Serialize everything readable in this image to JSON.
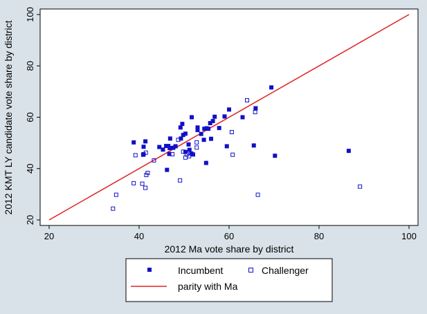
{
  "chart_data": {
    "type": "scatter",
    "xlabel": "2012 Ma vote share by district",
    "ylabel": "2012 KMT LY candidate vote share by district",
    "xlim": [
      20,
      100
    ],
    "ylim": [
      20,
      100
    ],
    "xticks": [
      20,
      40,
      60,
      80,
      100
    ],
    "yticks": [
      20,
      40,
      60,
      80,
      100
    ],
    "grid": false,
    "legend_position": "bottom",
    "legend": {
      "incumbent": "Incumbent",
      "challenger": "Challenger",
      "parity": "parity with Ma"
    },
    "colors": {
      "marker": "#1010c8",
      "line": "#e02020",
      "background": "#d9e2e8",
      "plot_area": "#ffffff"
    },
    "series": [
      {
        "name": "Incumbent",
        "marker": "filled-square",
        "points": [
          [
            38.8,
            50.2
          ],
          [
            41.0,
            48.5
          ],
          [
            41.4,
            50.6
          ],
          [
            41.0,
            45.6
          ],
          [
            44.5,
            48.4
          ],
          [
            45.3,
            47.4
          ],
          [
            46.0,
            48.8
          ],
          [
            46.5,
            48.8
          ],
          [
            46.8,
            48.0
          ],
          [
            46.9,
            51.7
          ],
          [
            46.7,
            45.7
          ],
          [
            46.2,
            39.5
          ],
          [
            47.6,
            48.1
          ],
          [
            48.1,
            48.7
          ],
          [
            49.3,
            51.7
          ],
          [
            49.2,
            56.0
          ],
          [
            49.6,
            57.4
          ],
          [
            49.8,
            53.1
          ],
          [
            50.3,
            53.6
          ],
          [
            50.3,
            46.5
          ],
          [
            51.0,
            49.4
          ],
          [
            51.2,
            47.3
          ],
          [
            51.6,
            45.9
          ],
          [
            51.7,
            60.0
          ],
          [
            52.0,
            45.5
          ],
          [
            53.0,
            55.0
          ],
          [
            53.0,
            56.0
          ],
          [
            53.8,
            53.5
          ],
          [
            54.5,
            55.5
          ],
          [
            54.4,
            51.2
          ],
          [
            55.0,
            55.7
          ],
          [
            54.9,
            42.2
          ],
          [
            55.4,
            55.5
          ],
          [
            55.8,
            57.7
          ],
          [
            56.0,
            51.6
          ],
          [
            56.4,
            58.5
          ],
          [
            56.8,
            60.2
          ],
          [
            57.8,
            55.8
          ],
          [
            59.0,
            60.3
          ],
          [
            59.5,
            48.7
          ],
          [
            60.0,
            63.0
          ],
          [
            63.0,
            60.0
          ],
          [
            65.5,
            49.0
          ],
          [
            65.9,
            63.5
          ],
          [
            69.4,
            71.6
          ],
          [
            70.2,
            45.0
          ],
          [
            86.6,
            46.9
          ]
        ]
      },
      {
        "name": "Challenger",
        "marker": "hollow-square",
        "points": [
          [
            34.2,
            24.4
          ],
          [
            34.9,
            29.8
          ],
          [
            38.8,
            34.3
          ],
          [
            39.2,
            45.2
          ],
          [
            40.7,
            34.1
          ],
          [
            40.9,
            45.4
          ],
          [
            41.4,
            32.5
          ],
          [
            41.5,
            46.2
          ],
          [
            41.6,
            37.5
          ],
          [
            41.9,
            38.3
          ],
          [
            43.3,
            43.2
          ],
          [
            47.4,
            45.6
          ],
          [
            48.7,
            51.2
          ],
          [
            49.1,
            35.4
          ],
          [
            49.8,
            46.6
          ],
          [
            50.3,
            44.3
          ],
          [
            50.6,
            45.5
          ],
          [
            51.1,
            44.8
          ],
          [
            52.8,
            48.2
          ],
          [
            52.8,
            50.2
          ],
          [
            60.6,
            54.2
          ],
          [
            60.8,
            45.4
          ],
          [
            64.0,
            66.6
          ],
          [
            65.8,
            62.0
          ],
          [
            66.4,
            29.8
          ],
          [
            89.1,
            33.0
          ]
        ]
      }
    ],
    "reference_lines": [
      {
        "name": "parity with Ma",
        "from": [
          20,
          20
        ],
        "to": [
          100,
          100
        ]
      }
    ]
  }
}
